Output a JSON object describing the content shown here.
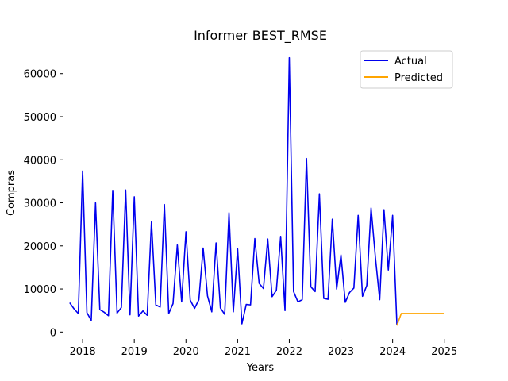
{
  "chart_data": {
    "type": "line",
    "title": "Informer BEST_RMSE",
    "xlabel": "Years",
    "ylabel": "Compras",
    "xlim": [
      2017.63,
      2025.25
    ],
    "ylim": [
      -1600,
      66400
    ],
    "xticks": [
      {
        "value": 2018,
        "label": "2018"
      },
      {
        "value": 2019,
        "label": "2019"
      },
      {
        "value": 2020,
        "label": "2020"
      },
      {
        "value": 2021,
        "label": "2021"
      },
      {
        "value": 2022,
        "label": "2022"
      },
      {
        "value": 2023,
        "label": "2023"
      },
      {
        "value": 2024,
        "label": "2024"
      },
      {
        "value": 2025,
        "label": "2025"
      }
    ],
    "yticks": [
      {
        "value": 0,
        "label": "0"
      },
      {
        "value": 10000,
        "label": "10000"
      },
      {
        "value": 20000,
        "label": "20000"
      },
      {
        "value": 30000,
        "label": "30000"
      },
      {
        "value": 40000,
        "label": "40000"
      },
      {
        "value": 50000,
        "label": "50000"
      },
      {
        "value": 60000,
        "label": "60000"
      }
    ],
    "grid": false,
    "legend_position": "top-right",
    "series": [
      {
        "name": "Actual",
        "color": "#0000ee",
        "x": [
          2017.75,
          2017.833,
          2017.917,
          2018.0,
          2018.083,
          2018.167,
          2018.25,
          2018.333,
          2018.417,
          2018.5,
          2018.583,
          2018.667,
          2018.75,
          2018.833,
          2018.917,
          2019.0,
          2019.083,
          2019.167,
          2019.25,
          2019.333,
          2019.417,
          2019.5,
          2019.583,
          2019.667,
          2019.75,
          2019.833,
          2019.917,
          2020.0,
          2020.083,
          2020.167,
          2020.25,
          2020.333,
          2020.417,
          2020.5,
          2020.583,
          2020.667,
          2020.75,
          2020.833,
          2020.917,
          2021.0,
          2021.083,
          2021.167,
          2021.25,
          2021.333,
          2021.417,
          2021.5,
          2021.583,
          2021.667,
          2021.75,
          2021.833,
          2021.917,
          2022.0,
          2022.083,
          2022.167,
          2022.25,
          2022.333,
          2022.417,
          2022.5,
          2022.583,
          2022.667,
          2022.75,
          2022.833,
          2022.917,
          2023.0,
          2023.083,
          2023.167,
          2023.25,
          2023.333,
          2023.417,
          2023.5,
          2023.583,
          2023.667,
          2023.75,
          2023.833,
          2023.917,
          2024.0,
          2024.083
        ],
        "y": [
          6800,
          5400,
          4300,
          37400,
          4500,
          2700,
          30000,
          5200,
          4600,
          3800,
          32900,
          4400,
          5700,
          33000,
          4000,
          31400,
          3700,
          4900,
          3900,
          25600,
          6300,
          5800,
          29600,
          4300,
          6600,
          20200,
          7000,
          23300,
          7400,
          5500,
          7500,
          19500,
          8400,
          4700,
          20700,
          5600,
          4100,
          27700,
          4700,
          19300,
          1900,
          6400,
          6300,
          21700,
          11300,
          10100,
          21600,
          8200,
          9700,
          22200,
          5000,
          63700,
          9400,
          7000,
          7500,
          40300,
          10500,
          9400,
          32100,
          7800,
          7600,
          26200,
          10000,
          17900,
          6900,
          9200,
          10200,
          27100,
          8300,
          10800,
          28800,
          17300,
          7500,
          28400,
          14400,
          27100,
          1600
        ]
      },
      {
        "name": "Predicted",
        "color": "#ffa500",
        "x": [
          2024.083,
          2024.167,
          2024.25,
          2024.333,
          2024.417,
          2024.5,
          2024.583,
          2024.667,
          2024.75,
          2024.833,
          2024.917,
          2025.0
        ],
        "y": [
          1500,
          4300,
          4300,
          4300,
          4300,
          4300,
          4300,
          4300,
          4300,
          4300,
          4300,
          4300
        ]
      }
    ]
  }
}
